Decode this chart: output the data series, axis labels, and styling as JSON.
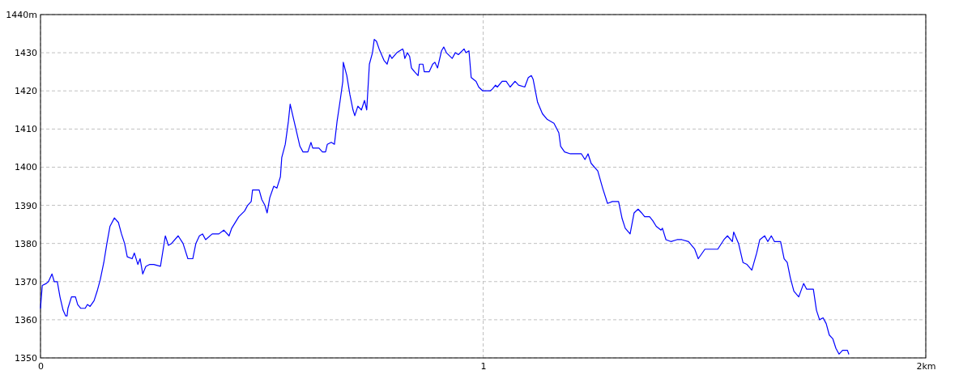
{
  "chart_data": {
    "type": "line",
    "xlim": [
      0,
      2
    ],
    "ylim": [
      1350,
      1440
    ],
    "xticks": [
      0,
      1,
      {
        "value": 2,
        "label": "2km"
      }
    ],
    "yticks": [
      1350,
      1360,
      1370,
      1380,
      1390,
      1400,
      1410,
      1420,
      1430,
      {
        "value": 1440,
        "label": "1440m"
      }
    ],
    "grid": true,
    "marker": "none",
    "line_style": "solid",
    "series": [
      {
        "color": "#0000ff",
        "x": [
          0,
          0.004,
          0.013,
          0.018,
          0.026,
          0.031,
          0.038,
          0.044,
          0.051,
          0.057,
          0.06,
          0.062,
          0.07,
          0.079,
          0.084,
          0.091,
          0.101,
          0.106,
          0.112,
          0.121,
          0.128,
          0.135,
          0.143,
          0.15,
          0.157,
          0.167,
          0.176,
          0.183,
          0.19,
          0.196,
          0.207,
          0.212,
          0.22,
          0.225,
          0.231,
          0.238,
          0.247,
          0.256,
          0.271,
          0.282,
          0.289,
          0.296,
          0.311,
          0.322,
          0.333,
          0.344,
          0.351,
          0.359,
          0.366,
          0.373,
          0.388,
          0.403,
          0.414,
          0.426,
          0.432,
          0.448,
          0.461,
          0.468,
          0.476,
          0.479,
          0.494,
          0.5,
          0.507,
          0.512,
          0.518,
          0.527,
          0.534,
          0.542,
          0.545,
          0.553,
          0.56,
          0.564,
          0.573,
          0.578,
          0.586,
          0.593,
          0.604,
          0.611,
          0.615,
          0.629,
          0.637,
          0.644,
          0.648,
          0.657,
          0.664,
          0.67,
          0.677,
          0.683,
          0.684,
          0.692,
          0.699,
          0.706,
          0.71,
          0.717,
          0.725,
          0.732,
          0.737,
          0.743,
          0.75,
          0.754,
          0.759,
          0.765,
          0.776,
          0.783,
          0.789,
          0.794,
          0.805,
          0.818,
          0.82,
          0.823,
          0.829,
          0.834,
          0.838,
          0.845,
          0.853,
          0.856,
          0.864,
          0.867,
          0.878,
          0.886,
          0.891,
          0.897,
          0.906,
          0.911,
          0.917,
          0.93,
          0.937,
          0.944,
          0.957,
          0.961,
          0.968,
          0.973,
          0.984,
          0.99,
          0.999,
          1.016,
          1.021,
          1.028,
          1.032,
          1.043,
          1.052,
          1.061,
          1.072,
          1.08,
          1.094,
          1.102,
          1.109,
          1.113,
          1.123,
          1.134,
          1.145,
          1.16,
          1.171,
          1.175,
          1.184,
          1.197,
          1.222,
          1.23,
          1.237,
          1.244,
          1.259,
          1.27,
          1.281,
          1.292,
          1.306,
          1.314,
          1.321,
          1.332,
          1.341,
          1.35,
          1.358,
          1.365,
          1.376,
          1.383,
          1.391,
          1.402,
          1.405,
          1.413,
          1.424,
          1.438,
          1.449,
          1.464,
          1.478,
          1.486,
          1.501,
          1.53,
          1.544,
          1.552,
          1.563,
          1.566,
          1.577,
          1.587,
          1.596,
          1.607,
          1.618,
          1.625,
          1.636,
          1.643,
          1.651,
          1.658,
          1.672,
          1.68,
          1.687,
          1.694,
          1.702,
          1.713,
          1.724,
          1.731,
          1.746,
          1.753,
          1.76,
          1.768,
          1.775,
          1.782,
          1.79,
          1.797,
          1.804,
          1.812,
          1.823,
          1.826
        ],
        "values": [
          1363,
          1369,
          1369.5,
          1370,
          1372,
          1370,
          1370,
          1366,
          1362.5,
          1361,
          1361,
          1363,
          1366,
          1366,
          1364,
          1363,
          1363,
          1364,
          1363.5,
          1365,
          1367.5,
          1370.5,
          1375,
          1380,
          1384.5,
          1386.7,
          1385.5,
          1382.5,
          1380,
          1376.5,
          1376,
          1377.5,
          1374.5,
          1376,
          1372,
          1374,
          1374.5,
          1374.5,
          1374,
          1382,
          1379.5,
          1380,
          1382,
          1380,
          1376,
          1376,
          1380,
          1382,
          1382.5,
          1381,
          1382.5,
          1382.5,
          1383.5,
          1382,
          1384,
          1387,
          1388.5,
          1390,
          1391,
          1394,
          1394,
          1391.5,
          1390,
          1388,
          1392,
          1395,
          1394.5,
          1397.5,
          1402.5,
          1406,
          1412,
          1416.5,
          1412,
          1409.5,
          1405.5,
          1404,
          1404,
          1406.5,
          1405,
          1405,
          1404,
          1404,
          1406,
          1406.5,
          1406,
          1412,
          1417.5,
          1422.5,
          1427.5,
          1424,
          1419,
          1415,
          1413.5,
          1416,
          1415,
          1417.5,
          1415,
          1427,
          1430,
          1433.5,
          1433,
          1431,
          1428,
          1427,
          1429.5,
          1428.5,
          1430,
          1431,
          1430.5,
          1428.5,
          1430,
          1429,
          1426,
          1425,
          1424,
          1427,
          1427,
          1425,
          1425,
          1427,
          1427.5,
          1426,
          1430.5,
          1431.5,
          1430,
          1428.5,
          1430,
          1429.5,
          1431,
          1430,
          1430.5,
          1423.5,
          1422.5,
          1421,
          1420,
          1420,
          1420.5,
          1421.5,
          1421,
          1422.5,
          1422.5,
          1421,
          1422.5,
          1421.5,
          1421,
          1423.5,
          1424,
          1423,
          1417,
          1414,
          1412.5,
          1411.5,
          1409,
          1405.5,
          1404,
          1403.5,
          1403.5,
          1402,
          1403.5,
          1401,
          1399,
          1394.5,
          1390.5,
          1391,
          1391,
          1386.5,
          1384,
          1382.5,
          1388,
          1389,
          1388,
          1387,
          1387,
          1386,
          1384.5,
          1383.5,
          1384,
          1381,
          1380.5,
          1381,
          1381,
          1380.5,
          1378.5,
          1376,
          1378.5,
          1378.5,
          1381,
          1382,
          1380.5,
          1383,
          1380,
          1375,
          1374.5,
          1373,
          1377.5,
          1381,
          1382,
          1380.5,
          1382,
          1380.5,
          1380.5,
          1376,
          1375,
          1371,
          1367.5,
          1366,
          1369.5,
          1368,
          1368,
          1362.5,
          1360,
          1360.5,
          1359,
          1356,
          1355,
          1352.5,
          1351,
          1352,
          1352,
          1351
        ]
      }
    ]
  }
}
